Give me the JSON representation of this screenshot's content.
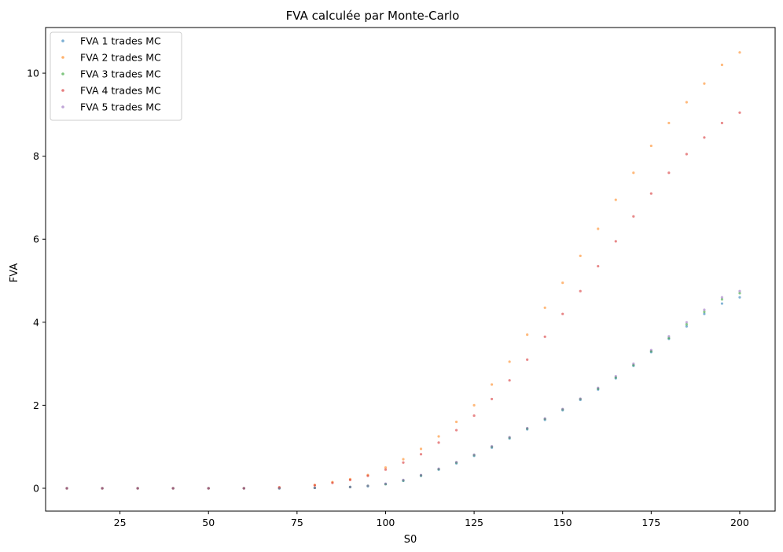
{
  "chart_data": {
    "type": "scatter",
    "title": "FVA calculée par Monte-Carlo",
    "xlabel": "S0",
    "ylabel": "FVA",
    "xlim": [
      4,
      210
    ],
    "ylim": [
      -0.55,
      11.1
    ],
    "xticks": [
      25,
      50,
      75,
      100,
      125,
      150,
      175,
      200
    ],
    "yticks": [
      0,
      2,
      4,
      6,
      8,
      10
    ],
    "grid": false,
    "legend": "top-left",
    "series": [
      {
        "name": "FVA 1 trades MC",
        "color": "#1f77b4",
        "points": [
          [
            10,
            0
          ],
          [
            20,
            0
          ],
          [
            30,
            0
          ],
          [
            40,
            0
          ],
          [
            50,
            0
          ],
          [
            60,
            0
          ],
          [
            70,
            0
          ],
          [
            80,
            0.01
          ],
          [
            90,
            0.03
          ],
          [
            95,
            0.05
          ],
          [
            100,
            0.1
          ],
          [
            105,
            0.18
          ],
          [
            110,
            0.3
          ],
          [
            115,
            0.45
          ],
          [
            120,
            0.6
          ],
          [
            125,
            0.78
          ],
          [
            130,
            0.98
          ],
          [
            135,
            1.2
          ],
          [
            140,
            1.42
          ],
          [
            145,
            1.65
          ],
          [
            150,
            1.88
          ],
          [
            155,
            2.13
          ],
          [
            160,
            2.38
          ],
          [
            165,
            2.65
          ],
          [
            170,
            2.95
          ],
          [
            175,
            3.28
          ],
          [
            180,
            3.6
          ],
          [
            185,
            3.9
          ],
          [
            190,
            4.2
          ],
          [
            195,
            4.45
          ],
          [
            200,
            4.6
          ]
        ]
      },
      {
        "name": "FVA 2 trades MC",
        "color": "#ff7f0e",
        "points": [
          [
            10,
            0
          ],
          [
            20,
            0
          ],
          [
            30,
            0
          ],
          [
            40,
            0
          ],
          [
            50,
            0
          ],
          [
            60,
            0
          ],
          [
            70,
            0.02
          ],
          [
            80,
            0.08
          ],
          [
            85,
            0.15
          ],
          [
            90,
            0.22
          ],
          [
            95,
            0.32
          ],
          [
            100,
            0.5
          ],
          [
            105,
            0.7
          ],
          [
            110,
            0.95
          ],
          [
            115,
            1.25
          ],
          [
            120,
            1.6
          ],
          [
            125,
            2.0
          ],
          [
            130,
            2.5
          ],
          [
            135,
            3.05
          ],
          [
            140,
            3.7
          ],
          [
            145,
            4.35
          ],
          [
            150,
            4.95
          ],
          [
            155,
            5.6
          ],
          [
            160,
            6.25
          ],
          [
            165,
            6.95
          ],
          [
            170,
            7.6
          ],
          [
            175,
            8.25
          ],
          [
            180,
            8.8
          ],
          [
            185,
            9.3
          ],
          [
            190,
            9.75
          ],
          [
            195,
            10.2
          ],
          [
            200,
            10.5
          ]
        ]
      },
      {
        "name": "FVA 3 trades MC",
        "color": "#2ca02c",
        "points": [
          [
            10,
            0
          ],
          [
            20,
            0
          ],
          [
            30,
            0
          ],
          [
            40,
            0
          ],
          [
            50,
            0
          ],
          [
            60,
            0
          ],
          [
            70,
            0
          ],
          [
            80,
            0.01
          ],
          [
            90,
            0.03
          ],
          [
            95,
            0.06
          ],
          [
            100,
            0.1
          ],
          [
            105,
            0.19
          ],
          [
            110,
            0.31
          ],
          [
            115,
            0.46
          ],
          [
            120,
            0.62
          ],
          [
            125,
            0.8
          ],
          [
            130,
            1.0
          ],
          [
            135,
            1.22
          ],
          [
            140,
            1.44
          ],
          [
            145,
            1.67
          ],
          [
            150,
            1.9
          ],
          [
            155,
            2.15
          ],
          [
            160,
            2.4
          ],
          [
            165,
            2.67
          ],
          [
            170,
            2.97
          ],
          [
            175,
            3.3
          ],
          [
            180,
            3.62
          ],
          [
            185,
            3.95
          ],
          [
            190,
            4.25
          ],
          [
            195,
            4.55
          ],
          [
            200,
            4.7
          ]
        ]
      },
      {
        "name": "FVA 4 trades MC",
        "color": "#d62728",
        "points": [
          [
            10,
            0
          ],
          [
            20,
            0
          ],
          [
            30,
            0
          ],
          [
            40,
            0
          ],
          [
            50,
            0
          ],
          [
            60,
            0
          ],
          [
            70,
            0.02
          ],
          [
            80,
            0.07
          ],
          [
            85,
            0.13
          ],
          [
            90,
            0.2
          ],
          [
            95,
            0.3
          ],
          [
            100,
            0.45
          ],
          [
            105,
            0.62
          ],
          [
            110,
            0.82
          ],
          [
            115,
            1.1
          ],
          [
            120,
            1.4
          ],
          [
            125,
            1.75
          ],
          [
            130,
            2.15
          ],
          [
            135,
            2.6
          ],
          [
            140,
            3.1
          ],
          [
            145,
            3.65
          ],
          [
            150,
            4.2
          ],
          [
            155,
            4.75
          ],
          [
            160,
            5.35
          ],
          [
            165,
            5.95
          ],
          [
            170,
            6.55
          ],
          [
            175,
            7.1
          ],
          [
            180,
            7.6
          ],
          [
            185,
            8.05
          ],
          [
            190,
            8.45
          ],
          [
            195,
            8.8
          ],
          [
            200,
            9.05
          ]
        ]
      },
      {
        "name": "FVA 5 trades MC",
        "color": "#9467bd",
        "points": [
          [
            10,
            0
          ],
          [
            20,
            0
          ],
          [
            30,
            0
          ],
          [
            40,
            0
          ],
          [
            50,
            0
          ],
          [
            60,
            0
          ],
          [
            70,
            0
          ],
          [
            80,
            0.01
          ],
          [
            90,
            0.03
          ],
          [
            95,
            0.06
          ],
          [
            100,
            0.11
          ],
          [
            105,
            0.2
          ],
          [
            110,
            0.32
          ],
          [
            115,
            0.47
          ],
          [
            120,
            0.63
          ],
          [
            125,
            0.81
          ],
          [
            130,
            1.01
          ],
          [
            135,
            1.23
          ],
          [
            140,
            1.45
          ],
          [
            145,
            1.68
          ],
          [
            150,
            1.91
          ],
          [
            155,
            2.16
          ],
          [
            160,
            2.42
          ],
          [
            165,
            2.7
          ],
          [
            170,
            3.0
          ],
          [
            175,
            3.33
          ],
          [
            180,
            3.66
          ],
          [
            185,
            4.0
          ],
          [
            190,
            4.3
          ],
          [
            195,
            4.6
          ],
          [
            200,
            4.75
          ]
        ]
      }
    ]
  }
}
